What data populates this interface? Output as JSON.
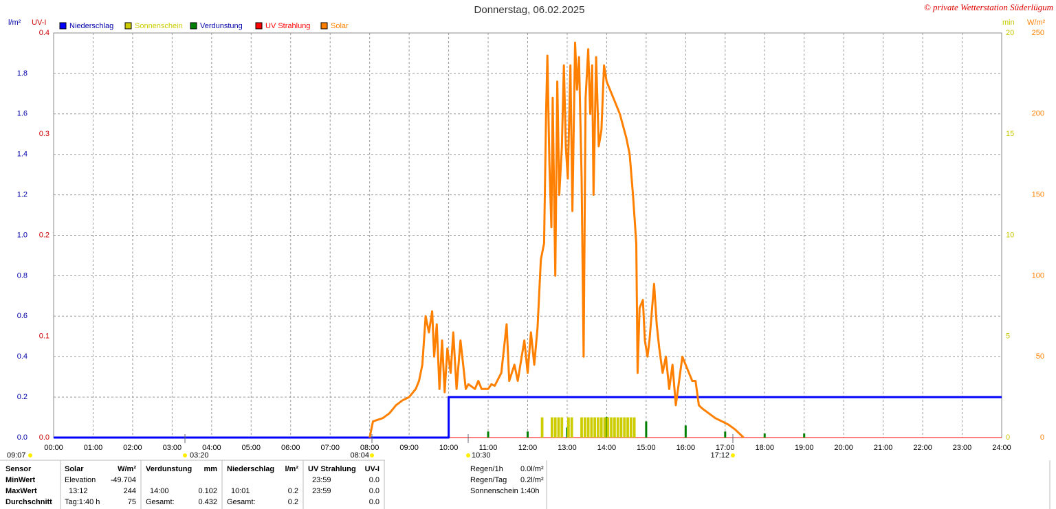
{
  "chart_data": {
    "type": "line",
    "title": "Donnerstag, 06.02.2025",
    "credit": "© private Wetterstation Süderlügum",
    "y_label": "l/m²",
    "y2_label": "UV-I",
    "y3_label": "min",
    "y4_label": "W/m²",
    "xlim": [
      0,
      1440
    ],
    "xticks": [
      {
        "value": 0,
        "label": "00:00"
      },
      {
        "value": 60,
        "label": "01:00"
      },
      {
        "value": 120,
        "label": "02:00"
      },
      {
        "value": 180,
        "label": "03:00"
      },
      {
        "value": 240,
        "label": "04:00"
      },
      {
        "value": 300,
        "label": "05:00"
      },
      {
        "value": 360,
        "label": "06:00"
      },
      {
        "value": 420,
        "label": "07:00"
      },
      {
        "value": 480,
        "label": "08:00"
      },
      {
        "value": 540,
        "label": "09:00"
      },
      {
        "value": 600,
        "label": "10:00"
      },
      {
        "value": 660,
        "label": "11:00"
      },
      {
        "value": 720,
        "label": "12:00"
      },
      {
        "value": 780,
        "label": "13:00"
      },
      {
        "value": 840,
        "label": "14:00"
      },
      {
        "value": 900,
        "label": "15:00"
      },
      {
        "value": 960,
        "label": "16:00"
      },
      {
        "value": 1020,
        "label": "17:00"
      },
      {
        "value": 1080,
        "label": "18:00"
      },
      {
        "value": 1140,
        "label": "19:00"
      },
      {
        "value": 1200,
        "label": "20:00"
      },
      {
        "value": 1260,
        "label": "21:00"
      },
      {
        "value": 1320,
        "label": "22:00"
      },
      {
        "value": 1380,
        "label": "23:00"
      },
      {
        "value": 1440,
        "label": "24:00"
      }
    ],
    "ylim": [
      0,
      2
    ],
    "yticks": [
      {
        "value": 0,
        "label": "0.0"
      },
      0.2,
      0.4,
      0.6,
      0.8,
      {
        "value": 1,
        "label": "1.0"
      },
      1.2,
      1.4,
      1.6,
      1.8
    ],
    "y2lim": [
      0,
      0.4
    ],
    "y2ticks": [
      {
        "value": 0,
        "label": "0.0"
      },
      0.1,
      0.2,
      0.3,
      0.4
    ],
    "y3lim": [
      0,
      20
    ],
    "y3ticks": [
      0,
      5,
      10,
      15,
      20
    ],
    "y4lim": [
      0,
      250
    ],
    "y4ticks": [
      0,
      50,
      100,
      150,
      200,
      250
    ],
    "grid": true,
    "series": [
      {
        "name": "Niederschlag",
        "color": "#0000ff",
        "axis": "y",
        "style": "line",
        "x": [
          0,
          600,
          600,
          1440
        ],
        "values": [
          0,
          0,
          0.2,
          0.2
        ]
      },
      {
        "name": "Sonnenschein",
        "color": "#cccc00",
        "axis": "y3",
        "style": "bar",
        "x": [
          740,
          755,
          760,
          765,
          770,
          780,
          785,
          800,
          805,
          810,
          815,
          820,
          825,
          830,
          835,
          840,
          845,
          850,
          855,
          860,
          865,
          870,
          875,
          880
        ],
        "values": [
          1,
          1,
          1,
          1,
          1,
          1,
          1,
          1,
          1,
          1,
          1,
          1,
          1,
          1,
          1,
          1,
          1,
          1,
          1,
          1,
          1,
          1,
          1,
          1
        ]
      },
      {
        "name": "Verdunstung",
        "color": "#008000",
        "axis": "y",
        "style": "bar",
        "x": [
          600,
          660,
          720,
          780,
          840,
          900,
          960,
          1020,
          1080,
          1140
        ],
        "values": [
          0.01,
          0.03,
          0.03,
          0.05,
          0.102,
          0.08,
          0.06,
          0.03,
          0.02,
          0.02
        ]
      },
      {
        "name": "UV Strahlung",
        "color": "#ff0000",
        "axis": "y2",
        "style": "line",
        "x": [
          0,
          1440
        ],
        "values": [
          0,
          0
        ]
      },
      {
        "name": "Solar",
        "color": "#ff8000",
        "axis": "y4",
        "style": "line",
        "x": [
          480,
          485,
          500,
          510,
          520,
          530,
          540,
          550,
          555,
          560,
          565,
          570,
          575,
          578,
          582,
          586,
          590,
          594,
          598,
          603,
          607,
          612,
          618,
          622,
          626,
          630,
          640,
          645,
          650,
          660,
          665,
          670,
          680,
          688,
          692,
          700,
          705,
          715,
          720,
          725,
          730,
          735,
          740,
          745,
          748,
          750,
          753,
          756,
          758,
          762,
          765,
          768,
          772,
          775,
          778,
          781,
          785,
          788,
          792,
          795,
          798,
          802,
          805,
          808,
          812,
          815,
          818,
          820,
          824,
          828,
          832,
          836,
          840,
          850,
          860,
          870,
          875,
          880,
          885,
          887,
          890,
          895,
          898,
          902,
          905,
          912,
          916,
          920,
          925,
          930,
          935,
          940,
          945,
          950,
          955,
          960,
          965,
          970,
          975,
          980,
          985,
          995,
          1005,
          1015,
          1025,
          1035,
          1048
        ],
        "values": [
          0,
          10,
          12,
          15,
          20,
          23,
          25,
          30,
          35,
          45,
          75,
          65,
          78,
          50,
          70,
          30,
          60,
          28,
          55,
          40,
          65,
          30,
          60,
          45,
          30,
          33,
          30,
          35,
          30,
          30,
          33,
          32,
          40,
          70,
          35,
          45,
          35,
          60,
          40,
          65,
          45,
          68,
          110,
          120,
          200,
          236,
          170,
          130,
          210,
          100,
          220,
          150,
          180,
          230,
          180,
          160,
          230,
          140,
          244,
          215,
          235,
          160,
          50,
          210,
          240,
          200,
          230,
          150,
          235,
          180,
          190,
          230,
          220,
          210,
          200,
          185,
          175,
          150,
          120,
          40,
          80,
          85,
          60,
          50,
          60,
          95,
          70,
          55,
          40,
          50,
          30,
          45,
          20,
          35,
          50,
          45,
          40,
          35,
          35,
          20,
          18,
          15,
          12,
          10,
          8,
          5,
          0
        ]
      }
    ],
    "annotations": [
      "09:07",
      "03:20",
      "08:04",
      "10:30",
      "17:12"
    ]
  },
  "stats": {
    "rows": [
      [
        "Sensor",
        "Solar",
        "W/m²",
        "Verdunstung",
        "mm",
        "Niederschlag",
        "l/m²",
        "UV Strahlung",
        "UV-I"
      ],
      [
        "MinWert",
        "Elevation",
        "-49.704",
        null,
        null,
        null,
        null,
        "23:59",
        "0.0"
      ],
      [
        "MaxWert",
        "13:12",
        "244",
        "14:00",
        "0.102",
        "10:01",
        "0.2",
        "23:59",
        "0.0"
      ],
      [
        "Durchschnitt",
        "Tag:1:40 h",
        "75",
        "Gesamt:",
        "0.432",
        "Gesamt:",
        "0.2",
        null,
        "0.0"
      ]
    ],
    "side": [
      [
        "Regen/1h",
        "0.0l/m²"
      ],
      [
        "Regen/Tag",
        "0.2l/m²"
      ],
      [
        "Sonnenschein",
        "1:40h"
      ]
    ]
  }
}
